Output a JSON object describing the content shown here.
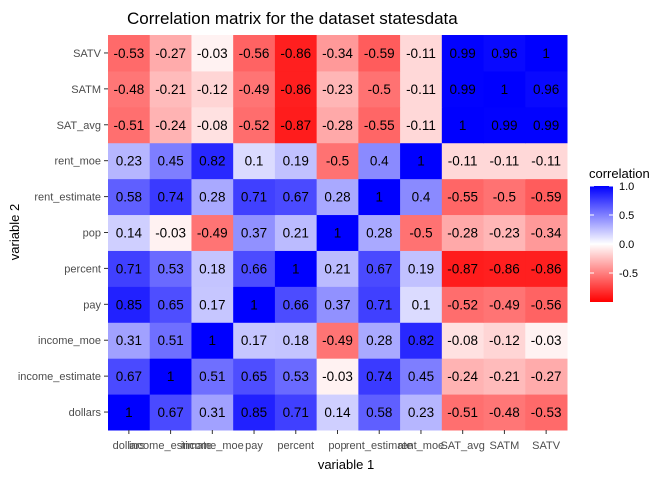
{
  "chart_data": {
    "type": "heatmap",
    "title": "Correlation matrix for the dataset statesdata",
    "xlabel": "variable 1",
    "ylabel": "variable 2",
    "variables": [
      "dollars",
      "income_estimate",
      "income_moe",
      "pay",
      "percent",
      "pop",
      "rent_estimate",
      "rent_moe",
      "SAT_avg",
      "SATM",
      "SATV"
    ],
    "values": [
      [
        1,
        0.67,
        0.31,
        0.85,
        0.71,
        0.14,
        0.58,
        0.23,
        -0.51,
        -0.48,
        -0.53
      ],
      [
        0.67,
        1,
        0.51,
        0.65,
        0.53,
        -0.03,
        0.74,
        0.45,
        -0.24,
        -0.21,
        -0.27
      ],
      [
        0.31,
        0.51,
        1,
        0.17,
        0.18,
        -0.49,
        0.28,
        0.82,
        -0.08,
        -0.12,
        -0.03
      ],
      [
        0.85,
        0.65,
        0.17,
        1,
        0.66,
        0.37,
        0.71,
        0.1,
        -0.52,
        -0.49,
        -0.56
      ],
      [
        0.71,
        0.53,
        0.18,
        0.66,
        1,
        0.21,
        0.67,
        0.19,
        -0.87,
        -0.86,
        -0.86
      ],
      [
        0.14,
        -0.03,
        -0.49,
        0.37,
        0.21,
        1,
        0.28,
        -0.5,
        -0.28,
        -0.23,
        -0.34
      ],
      [
        0.58,
        0.74,
        0.28,
        0.71,
        0.67,
        0.28,
        1,
        0.4,
        -0.55,
        -0.5,
        -0.59
      ],
      [
        0.23,
        0.45,
        0.82,
        0.1,
        0.19,
        -0.5,
        0.4,
        1,
        -0.11,
        -0.11,
        -0.11
      ],
      [
        -0.51,
        -0.24,
        -0.08,
        -0.52,
        -0.87,
        -0.28,
        -0.55,
        -0.11,
        1,
        0.99,
        0.99
      ],
      [
        -0.48,
        -0.21,
        -0.12,
        -0.49,
        -0.86,
        -0.23,
        -0.5,
        -0.11,
        0.99,
        1,
        0.96
      ],
      [
        -0.53,
        -0.27,
        -0.03,
        -0.56,
        -0.86,
        -0.34,
        -0.59,
        -0.11,
        0.99,
        0.96,
        1
      ]
    ],
    "color_range": [
      -1,
      1
    ],
    "colors": {
      "low": "#ff0000",
      "mid": "#ffffff",
      "high": "#0000ff",
      "panel": "#ebebeb"
    },
    "legend": {
      "title": "correlation",
      "ticks": [
        1.0,
        0.5,
        0.0,
        -0.5
      ],
      "tick_labels": [
        "1.0",
        "0.5",
        "0.0",
        "-0.5"
      ],
      "placement": "right"
    },
    "grid": true
  }
}
